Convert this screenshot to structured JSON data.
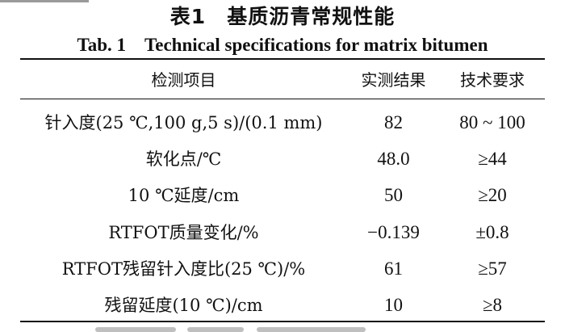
{
  "title_cn": "表1　基质沥青常规性能",
  "title_en": "Tab. 1　Technical specifications for matrix bitumen",
  "headers": [
    "检测项目",
    "实测结果",
    "技术要求"
  ],
  "rows": [
    {
      "item": "针入度(25 ℃,100 g,5 s)/(0.1 mm)",
      "result": "82",
      "requirement": "80 ~ 100"
    },
    {
      "item": "软化点/℃",
      "result": "48.0",
      "requirement": "≥44"
    },
    {
      "item": "10 ℃延度/cm",
      "result": "50",
      "requirement": "≥20"
    },
    {
      "item": "RTFOT质量变化/%",
      "result": "−0.139",
      "requirement": "±0.8"
    },
    {
      "item": "RTFOT残留针入度比(25 ℃)/%",
      "result": "61",
      "requirement": "≥57"
    },
    {
      "item": "残留延度(10 ℃)/cm",
      "result": "10",
      "requirement": "≥8"
    }
  ]
}
